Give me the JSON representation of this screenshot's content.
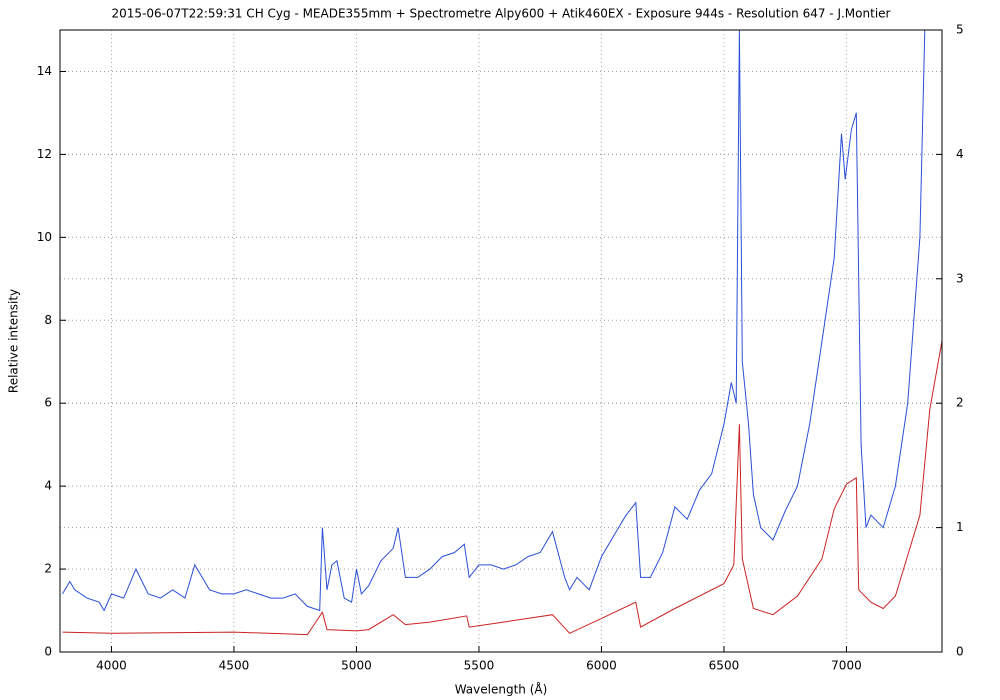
{
  "chart_data": {
    "type": "line",
    "title": "2015-06-07T22:59:31 CH Cyg - MEADE355mm + Spectrometre Alpy600 + Atik460EX - Exposure 944s - Resolution 647 - J.Montier",
    "x_label": "Wavelength (Å)",
    "y_label": "Relative intensity",
    "xlim": [
      3790,
      7390
    ],
    "xticks": [
      4000,
      4500,
      5000,
      5500,
      6000,
      6500,
      7000
    ],
    "ylim": [
      0,
      15
    ],
    "yticks": [
      0,
      2,
      4,
      6,
      8,
      10,
      12,
      14
    ],
    "y2lim": [
      0,
      5
    ],
    "y2ticks": [
      0,
      1,
      2,
      3,
      4,
      5
    ],
    "grid": true,
    "series": [
      {
        "color": "#2a4fd8",
        "x": [
          3800,
          3830,
          3850,
          3900,
          3950,
          3970,
          4000,
          4050,
          4100,
          4150,
          4200,
          4250,
          4300,
          4340,
          4400,
          4450,
          4500,
          4550,
          4600,
          4650,
          4700,
          4750,
          4800,
          4850,
          4861,
          4880,
          4900,
          4920,
          4950,
          4980,
          5000,
          5020,
          5050,
          5100,
          5150,
          5170,
          5200,
          5250,
          5300,
          5350,
          5400,
          5440,
          5460,
          5500,
          5550,
          5600,
          5650,
          5700,
          5750,
          5800,
          5850,
          5870,
          5900,
          5950,
          6000,
          6050,
          6100,
          6140,
          6160,
          6200,
          6250,
          6300,
          6350,
          6400,
          6450,
          6500,
          6530,
          6550,
          6563,
          6575,
          6600,
          6620,
          6650,
          6700,
          6750,
          6800,
          6850,
          6900,
          6950,
          6980,
          6995,
          7020,
          7040,
          7060,
          7080,
          7100,
          7150,
          7200,
          7250,
          7300,
          7320
        ],
        "values": [
          1.4,
          1.7,
          1.5,
          1.3,
          1.2,
          1.0,
          1.4,
          1.3,
          2.0,
          1.4,
          1.3,
          1.5,
          1.3,
          2.1,
          1.5,
          1.4,
          1.4,
          1.5,
          1.4,
          1.3,
          1.3,
          1.4,
          1.1,
          1.0,
          3.0,
          1.5,
          2.1,
          2.2,
          1.3,
          1.2,
          2.0,
          1.4,
          1.6,
          2.2,
          2.5,
          3.0,
          1.8,
          1.8,
          2.0,
          2.3,
          2.4,
          2.6,
          1.8,
          2.1,
          2.1,
          2.0,
          2.1,
          2.3,
          2.4,
          2.9,
          1.8,
          1.5,
          1.8,
          1.5,
          2.3,
          2.8,
          3.3,
          3.6,
          1.8,
          1.8,
          2.4,
          3.5,
          3.2,
          3.9,
          4.3,
          5.5,
          6.5,
          6.0,
          15.0,
          7.0,
          5.5,
          3.8,
          3.0,
          2.7,
          3.4,
          4.0,
          5.5,
          7.5,
          9.5,
          12.5,
          11.4,
          12.6,
          13.0,
          5.0,
          3.0,
          3.3,
          3.0,
          4.0,
          6.0,
          10.0,
          15.0
        ]
      },
      {
        "color": "#cc2222",
        "axis": "y2",
        "x": [
          3800,
          4000,
          4500,
          4800,
          4861,
          4880,
          5000,
          5050,
          5150,
          5200,
          5300,
          5450,
          5460,
          5600,
          5800,
          5870,
          6000,
          6140,
          6160,
          6300,
          6500,
          6540,
          6563,
          6575,
          6620,
          6700,
          6800,
          6900,
          6950,
          7000,
          7040,
          7050,
          7100,
          7150,
          7200,
          7300,
          7340,
          7390
        ],
        "values": [
          0.16,
          0.15,
          0.16,
          0.14,
          0.32,
          0.18,
          0.17,
          0.18,
          0.3,
          0.22,
          0.24,
          0.29,
          0.2,
          0.24,
          0.3,
          0.15,
          0.27,
          0.4,
          0.2,
          0.35,
          0.55,
          0.7,
          1.83,
          0.75,
          0.35,
          0.3,
          0.45,
          0.75,
          1.15,
          1.35,
          1.4,
          0.5,
          0.4,
          0.35,
          0.45,
          1.1,
          1.95,
          2.5
        ]
      }
    ]
  }
}
